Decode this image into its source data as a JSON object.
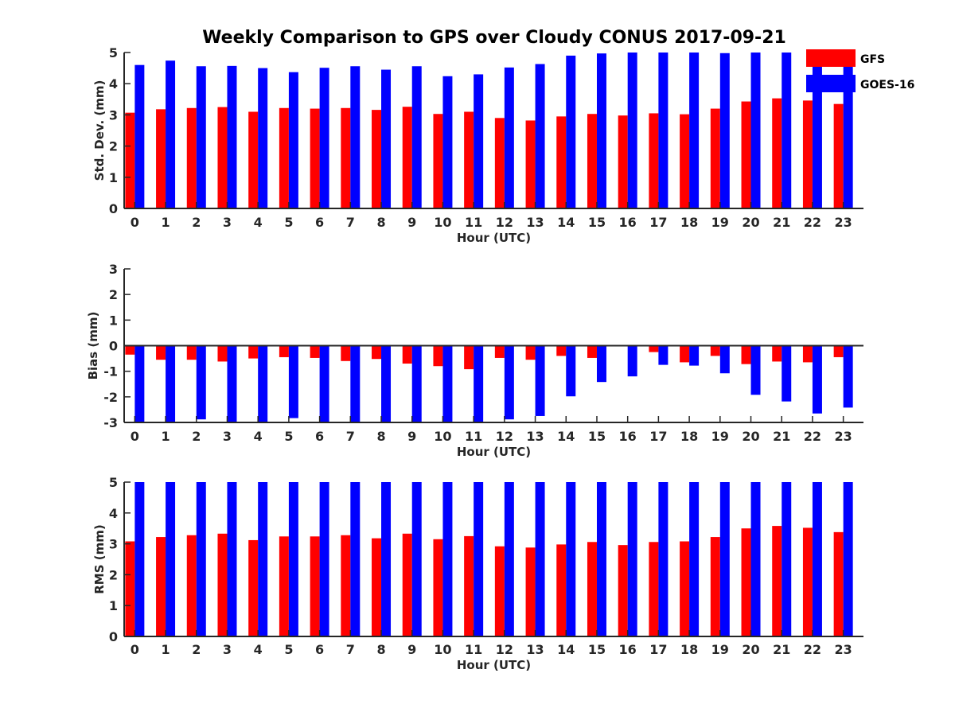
{
  "title": "Weekly Comparison to GPS over Cloudy CONUS 2017-09-21",
  "legend": [
    {
      "label": "GFS",
      "color": "#ff0000"
    },
    {
      "label": "GOES-16",
      "color": "#0000ff"
    }
  ],
  "chart_data": [
    {
      "type": "bar",
      "title": "Weekly Comparison to GPS over Cloudy CONUS 2017-09-21",
      "xlabel": "Hour (UTC)",
      "ylabel": "Std. Dev. (mm)",
      "categories": [
        "0",
        "1",
        "2",
        "3",
        "4",
        "5",
        "6",
        "7",
        "8",
        "9",
        "10",
        "11",
        "12",
        "13",
        "14",
        "15",
        "16",
        "17",
        "18",
        "19",
        "20",
        "21",
        "22",
        "23"
      ],
      "ylim": [
        0,
        5
      ],
      "yticks": [
        "0",
        "1",
        "2",
        "3",
        "4",
        "5"
      ],
      "grid": false,
      "legend_position": "top-right",
      "series": [
        {
          "name": "GFS",
          "color": "#ff0000",
          "values": [
            3.07,
            3.18,
            3.22,
            3.25,
            3.1,
            3.22,
            3.2,
            3.22,
            3.16,
            3.26,
            3.03,
            3.1,
            2.9,
            2.82,
            2.95,
            3.03,
            2.98,
            3.05,
            3.02,
            3.2,
            3.43,
            3.53,
            3.46,
            3.35
          ]
        },
        {
          "name": "GOES-16",
          "color": "#0000ff",
          "values": [
            4.6,
            4.74,
            4.56,
            4.57,
            4.5,
            4.37,
            4.51,
            4.56,
            4.45,
            4.56,
            4.24,
            4.3,
            4.52,
            4.63,
            4.9,
            4.97,
            5.0,
            5.0,
            5.0,
            4.98,
            5.0,
            5.0,
            5.0,
            5.0
          ]
        }
      ]
    },
    {
      "type": "bar",
      "xlabel": "Hour (UTC)",
      "ylabel": "Bias (mm)",
      "categories": [
        "0",
        "1",
        "2",
        "3",
        "4",
        "5",
        "6",
        "7",
        "8",
        "9",
        "10",
        "11",
        "12",
        "13",
        "14",
        "15",
        "16",
        "17",
        "18",
        "19",
        "20",
        "21",
        "22",
        "23"
      ],
      "ylim": [
        -3,
        3
      ],
      "yticks": [
        "-3",
        "-2",
        "-1",
        "0",
        "1",
        "2",
        "3"
      ],
      "grid": false,
      "series": [
        {
          "name": "GFS",
          "color": "#ff0000",
          "values": [
            -0.35,
            -0.55,
            -0.55,
            -0.62,
            -0.5,
            -0.45,
            -0.48,
            -0.6,
            -0.52,
            -0.7,
            -0.8,
            -0.92,
            -0.48,
            -0.55,
            -0.4,
            -0.48,
            0.0,
            -0.25,
            -0.65,
            -0.4,
            -0.72,
            -0.62,
            -0.65,
            -0.45
          ]
        },
        {
          "name": "GOES-16",
          "color": "#0000ff",
          "values": [
            -3.0,
            -3.0,
            -2.88,
            -3.0,
            -3.0,
            -2.83,
            -3.0,
            -3.0,
            -3.0,
            -3.0,
            -3.0,
            -3.0,
            -2.88,
            -2.75,
            -1.98,
            -1.42,
            -1.2,
            -0.75,
            -0.78,
            -1.08,
            -1.92,
            -2.18,
            -2.65,
            -2.42
          ]
        }
      ]
    },
    {
      "type": "bar",
      "xlabel": "Hour (UTC)",
      "ylabel": "RMS (mm)",
      "categories": [
        "0",
        "1",
        "2",
        "3",
        "4",
        "5",
        "6",
        "7",
        "8",
        "9",
        "10",
        "11",
        "12",
        "13",
        "14",
        "15",
        "16",
        "17",
        "18",
        "19",
        "20",
        "21",
        "22",
        "23"
      ],
      "ylim": [
        0,
        5
      ],
      "yticks": [
        "0",
        "1",
        "2",
        "3",
        "4",
        "5"
      ],
      "grid": false,
      "series": [
        {
          "name": "GFS",
          "color": "#ff0000",
          "values": [
            3.08,
            3.22,
            3.28,
            3.33,
            3.12,
            3.24,
            3.24,
            3.28,
            3.18,
            3.33,
            3.15,
            3.25,
            2.92,
            2.88,
            2.98,
            3.06,
            2.96,
            3.06,
            3.08,
            3.22,
            3.5,
            3.58,
            3.52,
            3.38
          ]
        },
        {
          "name": "GOES-16",
          "color": "#0000ff",
          "values": [
            5.0,
            5.0,
            5.0,
            5.0,
            5.0,
            5.0,
            5.0,
            5.0,
            5.0,
            5.0,
            5.0,
            5.0,
            5.0,
            5.0,
            5.0,
            5.0,
            5.0,
            5.0,
            5.0,
            5.0,
            5.0,
            5.0,
            5.0,
            5.0
          ]
        }
      ]
    }
  ]
}
